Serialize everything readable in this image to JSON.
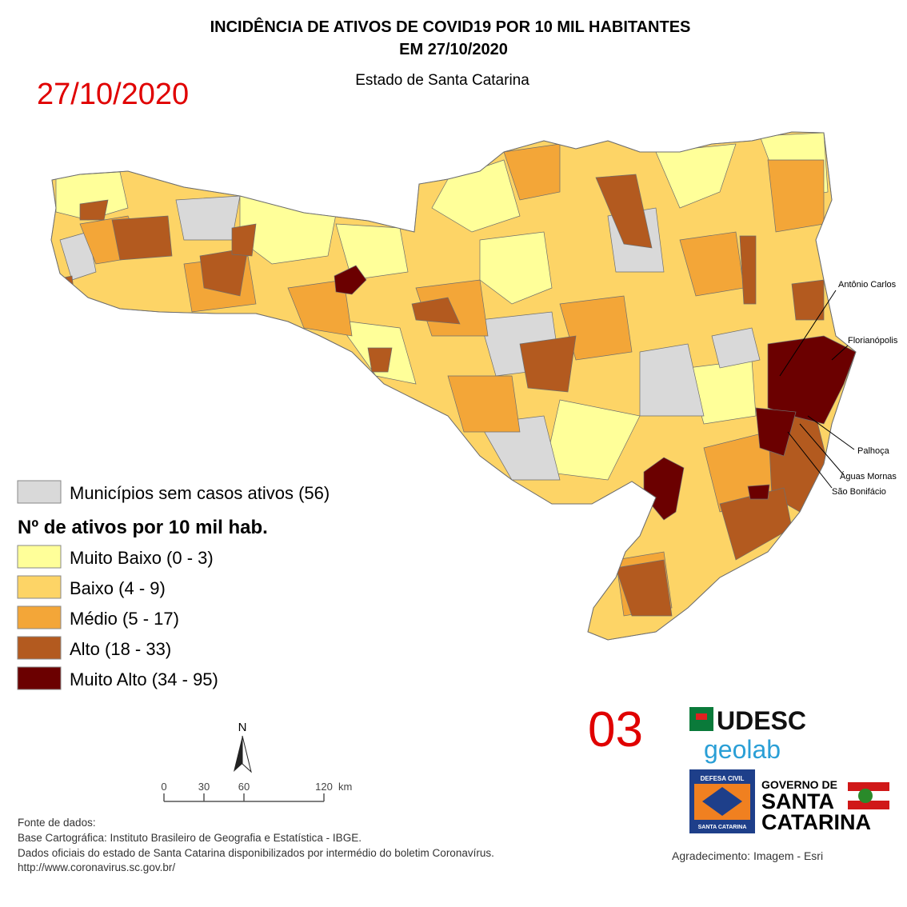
{
  "header": {
    "title_lines": [
      "INCIDÊNCIA DE ATIVOS DE COVID19 POR 10 MIL HABITANTES",
      "EM 27/10/2020"
    ],
    "subtitle": "Estado de Santa Catarina",
    "date_stamp": "27/10/2020"
  },
  "map": {
    "labels": [
      "Antônio Carlos",
      "Florianópolis",
      "Palhoça",
      "Águas Mornas",
      "São Bonifácio"
    ]
  },
  "legend": {
    "no_cases": {
      "label": "Municípios sem casos ativos (56)",
      "color": "#d9d9d9"
    },
    "title": "Nº de ativos por 10 mil hab.",
    "classes": [
      {
        "label": "Muito Baixo (0 - 3)",
        "color": "#ffff99"
      },
      {
        "label": "Baixo (4 - 9)",
        "color": "#fdd466"
      },
      {
        "label": "Médio (5 - 17)",
        "color": "#f3a638"
      },
      {
        "label": "Alto (18 - 33)",
        "color": "#b35a1f"
      },
      {
        "label": "Muito Alto (34 - 95)",
        "color": "#6b0000"
      }
    ]
  },
  "page_number": "03",
  "scale_bar": {
    "north": "N",
    "ticks": [
      0,
      30,
      60,
      120
    ],
    "unit": "km"
  },
  "logos": {
    "udesc": "UDESC",
    "geolab": "geolab",
    "defesa_civil_top": "DEFESA CIVIL",
    "defesa_civil_bottom": "SANTA CATARINA",
    "governo_lines": [
      "GOVERNO DE",
      "SANTA",
      "CATARINA"
    ]
  },
  "sources": {
    "heading": "Fonte de dados:",
    "lines": [
      "Base Cartográfica: Instituto Brasileiro de Geografia e Estatística - IBGE.",
      "Dados oficiais do estado de Santa Catarina disponibilizados por intermédio do boletim Coronavírus.",
      "http://www.coronavirus.sc.gov.br/"
    ]
  },
  "credit": "Agradecimento: Imagem - Esri"
}
